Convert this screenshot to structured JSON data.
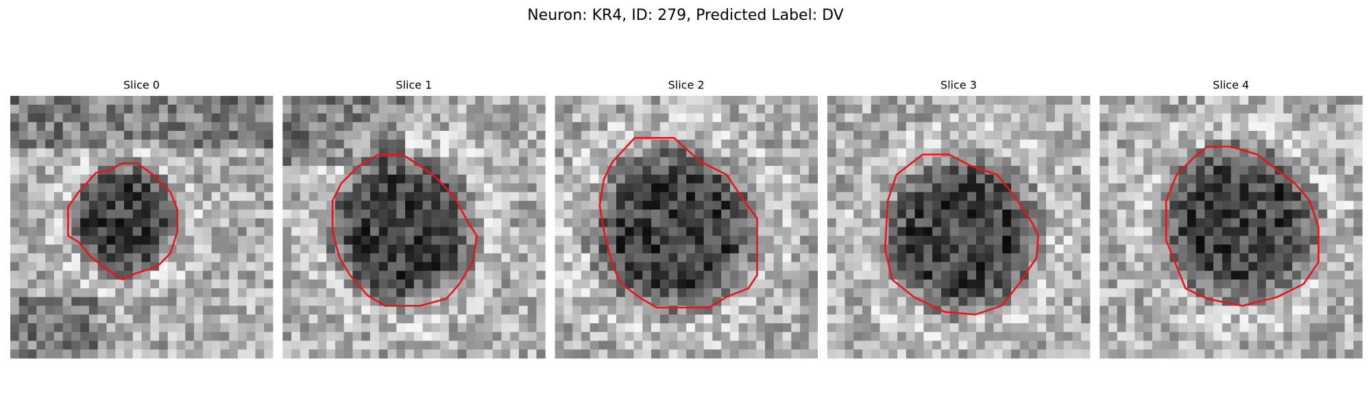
{
  "title": "Neuron: KR4, ID: 279, Predicted Label: DV",
  "panels": [
    {
      "title": "Slice 0"
    },
    {
      "title": "Slice 1"
    },
    {
      "title": "Slice 2"
    },
    {
      "title": "Slice 3"
    },
    {
      "title": "Slice 4"
    }
  ]
}
